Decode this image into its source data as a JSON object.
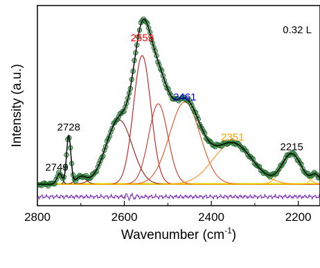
{
  "chart_data": {
    "type": "line",
    "xlabel": "Wavenumber (cm",
    "xlabel_sup": "-1",
    "xlabel_tail": ")",
    "ylabel": "Intensity (a.u.)",
    "corner_label": "0.32 L",
    "xlim": [
      2800,
      2150
    ],
    "x_reversed": true,
    "ylim": [
      -0.12,
      1.0
    ],
    "x_ticks": [
      2800,
      2600,
      2400,
      2200
    ],
    "x_tick_labels": [
      "2800",
      "2600",
      "2400",
      "2200"
    ],
    "y_ticks_labeled": false,
    "grid": false,
    "peaks": [
      {
        "center": 2749,
        "height": 0.06,
        "width": 6,
        "color": "#111111"
      },
      {
        "center": 2728,
        "height": 0.27,
        "width": 5,
        "color": "#222222"
      },
      {
        "center": 2700,
        "height": 0.04,
        "width": 12,
        "color": "#7a1010"
      },
      {
        "center": 2612,
        "height": 0.36,
        "width": 30,
        "color": "#8b1a1a"
      },
      {
        "center": 2559,
        "height": 0.72,
        "width": 20,
        "color": "#c81818"
      },
      {
        "center": 2522,
        "height": 0.45,
        "width": 22,
        "color": "#d63020"
      },
      {
        "center": 2461,
        "height": 0.46,
        "width": 35,
        "color": "#e8501e"
      },
      {
        "center": 2351,
        "height": 0.23,
        "width": 45,
        "color": "#ff8c1a"
      },
      {
        "center": 2215,
        "height": 0.17,
        "width": 22,
        "color": "#ffa500"
      },
      {
        "center": 2160,
        "height": 0.05,
        "width": 10,
        "color": "#ffcc00"
      }
    ],
    "background_color": "#d8d800",
    "fit_color": "#000000",
    "data_marker_color": "#2e8b3a",
    "data_marker_edge": "#1a5a24",
    "residual_color": "#7b2fbe",
    "residual_offset": -0.07,
    "peak_labels": [
      {
        "text": "2749",
        "x": 2749,
        "y": 0.075,
        "color": "#000000"
      },
      {
        "text": "2728",
        "x": 2728,
        "y": 0.3,
        "color": "#000000"
      },
      {
        "text": "2559",
        "x": 2559,
        "y": 0.8,
        "color": "#ff0000"
      },
      {
        "text": "2461",
        "x": 2461,
        "y": 0.47,
        "color": "#0000ff"
      },
      {
        "text": "2351",
        "x": 2351,
        "y": 0.245,
        "color": "#ffa500"
      },
      {
        "text": "2215",
        "x": 2215,
        "y": 0.19,
        "color": "#000000"
      }
    ]
  }
}
